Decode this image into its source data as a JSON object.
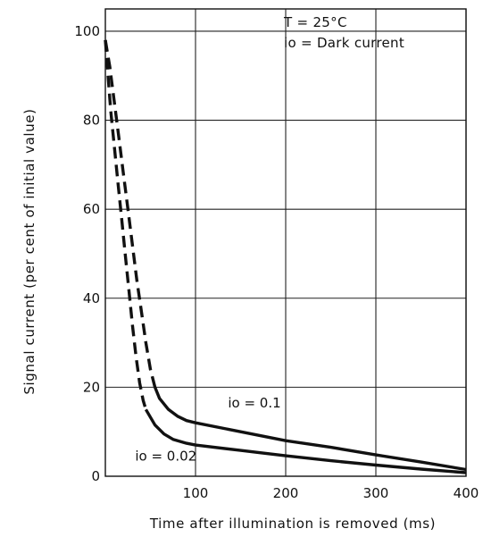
{
  "chart_data": {
    "type": "line",
    "title": "",
    "xlabel": "Time after illumination is removed (ms)",
    "ylabel": "Signal current (per cent of initial value)",
    "xlim": [
      0,
      400
    ],
    "ylim": [
      0,
      105
    ],
    "x_ticks": [
      100,
      200,
      300,
      400
    ],
    "y_ticks": [
      0,
      20,
      40,
      60,
      80,
      100
    ],
    "x_tick_labels": [
      "100",
      "200",
      "300",
      "400"
    ],
    "y_tick_labels": [
      "0",
      "20",
      "40",
      "60",
      "80",
      "100"
    ],
    "grid": true,
    "conditions": {
      "line1": "T   = 25°C",
      "line2": "io  = Dark current"
    },
    "series": [
      {
        "name": "io = 0.1",
        "dashed_segment": [
          [
            0,
            98
          ],
          [
            5,
            92
          ],
          [
            10,
            84
          ],
          [
            15,
            76
          ],
          [
            20,
            68
          ],
          [
            25,
            60
          ],
          [
            30,
            52
          ],
          [
            35,
            44
          ],
          [
            40,
            37
          ],
          [
            45,
            30
          ],
          [
            50,
            24
          ],
          [
            55,
            20
          ]
        ],
        "solid_segment": [
          [
            55,
            20
          ],
          [
            60,
            17.5
          ],
          [
            70,
            15
          ],
          [
            80,
            13.5
          ],
          [
            90,
            12.5
          ],
          [
            100,
            12
          ],
          [
            150,
            10
          ],
          [
            200,
            8
          ],
          [
            250,
            6.5
          ],
          [
            300,
            4.8
          ],
          [
            350,
            3.2
          ],
          [
            400,
            1.5
          ]
        ]
      },
      {
        "name": "io = 0.02",
        "dashed_segment": [
          [
            0,
            98
          ],
          [
            3,
            90
          ],
          [
            6,
            82
          ],
          [
            10,
            74
          ],
          [
            14,
            66
          ],
          [
            18,
            58
          ],
          [
            22,
            50
          ],
          [
            26,
            42
          ],
          [
            30,
            34
          ],
          [
            34,
            27
          ],
          [
            38,
            21
          ],
          [
            42,
            17
          ],
          [
            45,
            15
          ]
        ],
        "solid_segment": [
          [
            45,
            15
          ],
          [
            55,
            11.5
          ],
          [
            65,
            9.5
          ],
          [
            75,
            8.3
          ],
          [
            90,
            7.4
          ],
          [
            100,
            7
          ],
          [
            150,
            5.8
          ],
          [
            200,
            4.6
          ],
          [
            250,
            3.5
          ],
          [
            300,
            2.5
          ],
          [
            350,
            1.6
          ],
          [
            400,
            0.8
          ]
        ]
      }
    ],
    "annotations": [
      {
        "text": "io = 0.1",
        "x": 136,
        "y": 15.5
      },
      {
        "text": "io = 0.02",
        "x": 33,
        "y": 3.5
      }
    ]
  }
}
